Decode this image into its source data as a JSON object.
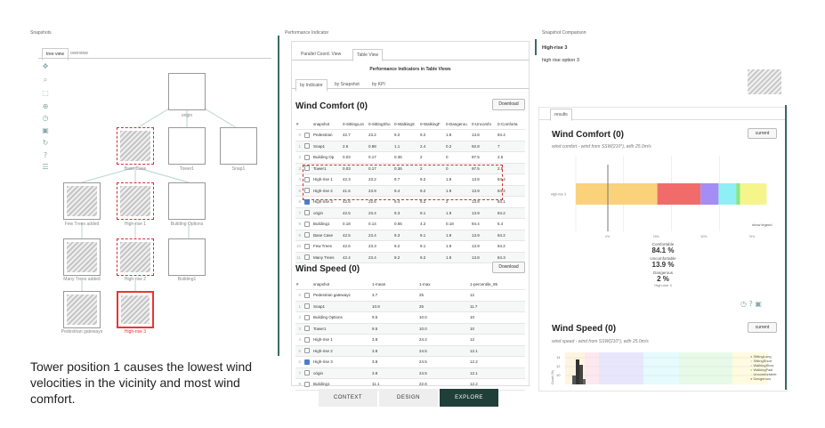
{
  "left": {
    "title": "Snapshots",
    "tabs": [
      {
        "label": "tree view",
        "active": true
      },
      {
        "label": "overview",
        "active": false
      }
    ],
    "tools": [
      "move-icon",
      "zoom-icon",
      "select-icon",
      "node-icon",
      "refresh-icon",
      "save-icon",
      "reset-icon",
      "help-icon",
      "filter-icon"
    ],
    "nodes": [
      {
        "label": "origin"
      },
      {
        "label": "Base Case"
      },
      {
        "label": "Tower1"
      },
      {
        "label": "Snap1"
      },
      {
        "label": "Few Trees added"
      },
      {
        "label": "High-rise 1"
      },
      {
        "label": "Building Options"
      },
      {
        "label": "Many Trees added"
      },
      {
        "label": "High-rise 2"
      },
      {
        "label": "Building1"
      },
      {
        "label": "Pedestrian gateways"
      },
      {
        "label": "High-rise 3"
      }
    ],
    "caption": "Tower position 1 causes the lowest wind velocities in the vicinity and most wind comfort."
  },
  "middle": {
    "title": "Performance Indicator",
    "view_tabs": [
      {
        "label": "Parallel Coord. View"
      },
      {
        "label": "Table View"
      }
    ],
    "table_title": "Performance Indicators in Table Views",
    "group_tabs": [
      {
        "label": "by Indicator"
      },
      {
        "label": "by Snapshot"
      },
      {
        "label": "by KPI"
      }
    ],
    "download": "Download",
    "wind_comfort": {
      "heading": "Wind Comfort (0)",
      "columns": [
        "#",
        "",
        "snapshot",
        "0-SittingLon",
        "0-SittingSho",
        "0-WalkingS",
        "0-WalkingF",
        "0-Dangerou",
        "0-Uncomfo",
        "0-Comforta"
      ],
      "rows": [
        [
          "0",
          false,
          "Pedestrian",
          "42.7",
          "23.2",
          "9.2",
          "9.2",
          "1.8",
          "13.8",
          "84.4"
        ],
        [
          "1",
          false,
          "Snap1",
          "2.6",
          "0.98",
          "1.1",
          "2.4",
          "0.2",
          "92.8",
          "7"
        ],
        [
          "2",
          false,
          "Building Op",
          "0.03",
          "0.17",
          "0.36",
          "2",
          "0",
          "97.5",
          "2.5"
        ],
        [
          "3",
          false,
          "Tower1",
          "0.03",
          "0.17",
          "0.36",
          "2",
          "0",
          "97.5",
          "2.5"
        ],
        [
          "4",
          false,
          "High-rise 1",
          "42.3",
          "23.2",
          "9.7",
          "9.2",
          "1.9",
          "13.8",
          "84.4"
        ],
        [
          "5",
          false,
          "High-rise 2",
          "41.6",
          "23.9",
          "9.4",
          "9.2",
          "1.9",
          "13.9",
          "84.2"
        ],
        [
          "6",
          true,
          "High-rise 3",
          "42.6",
          "22.6",
          "9.4",
          "9.2",
          "2",
          "13.9",
          "84.1"
        ],
        [
          "7",
          false,
          "origin",
          "42.5",
          "23.4",
          "9.3",
          "9.1",
          "1.9",
          "13.9",
          "84.2"
        ],
        [
          "8",
          false,
          "Building1",
          "0.18",
          "0.14",
          "0.65",
          "4.2",
          "0.18",
          "94.4",
          "5.4"
        ],
        [
          "9",
          false,
          "Base Case",
          "42.5",
          "23.4",
          "9.3",
          "9.1",
          "1.9",
          "13.9",
          "84.2"
        ],
        [
          "10",
          false,
          "Few Trees",
          "42.6",
          "23.3",
          "9.2",
          "9.1",
          "1.9",
          "13.9",
          "84.2"
        ],
        [
          "11",
          false,
          "Many Trees",
          "42.4",
          "23.4",
          "9.2",
          "9.2",
          "1.9",
          "13.8",
          "84.3"
        ]
      ]
    },
    "wind_speed": {
      "heading": "Wind Speed (0)",
      "columns": [
        "#",
        "",
        "snapshot",
        "1-mean",
        "1-max",
        "1-percentile_95"
      ],
      "rows": [
        [
          "0",
          false,
          "Pedestrian gateways",
          "3.7",
          "25",
          "12"
        ],
        [
          "1",
          false,
          "Snap1",
          "10.8",
          "25",
          "11.7"
        ],
        [
          "2",
          false,
          "Building Options",
          "9.5",
          "10.0",
          "10"
        ],
        [
          "3",
          false,
          "Tower1",
          "9.5",
          "10.0",
          "10"
        ],
        [
          "4",
          false,
          "High-rise 1",
          "3.8",
          "24.4",
          "12"
        ],
        [
          "5",
          false,
          "High-rise 2",
          "3.8",
          "24.5",
          "12.1"
        ],
        [
          "6",
          true,
          "High-rise 3",
          "3.8",
          "24.5",
          "12.2"
        ],
        [
          "7",
          false,
          "origin",
          "3.8",
          "24.5",
          "12.1"
        ],
        [
          "8",
          false,
          "Building1",
          "11.1",
          "22.8",
          "12.2"
        ]
      ]
    }
  },
  "nav": [
    {
      "label": "CONTEXT"
    },
    {
      "label": "DESIGN"
    },
    {
      "label": "EXPLORE"
    }
  ],
  "right": {
    "title": "Snapshot Comparison",
    "snap_name": "High-rise 3",
    "snap_desc": "high rise option 3",
    "results_tab": "results",
    "wind_comfort": {
      "heading": "Wind Comfort (0)",
      "button": "current",
      "subtitle": "wind comfort - wind from SSW(210°), with 25.0m/s",
      "row_label": "High-rise 3",
      "show_legend": "show legend",
      "ticks": [
        "0%",
        "25%",
        "50%",
        "75%"
      ],
      "stats": [
        {
          "label": "Comfortable",
          "value": "84.1 %"
        },
        {
          "label": "Uncomfortable",
          "value": "13.9 %"
        },
        {
          "label": "Dangerous",
          "value": "2 %"
        }
      ],
      "stat_sub": "High-rise 3"
    },
    "wind_speed": {
      "heading": "Wind Speed (0)",
      "button": "current",
      "subtitle": "wind speed - wind from SSW(210°), with 25.0m/s",
      "yticks": [
        "14",
        "12",
        "10"
      ],
      "ylabel": "Count (%)",
      "legend": [
        "SittingLong",
        "SittingShort",
        "WalkingSlow",
        "WalkingFast",
        "Uncomfortable",
        "Dangerous"
      ]
    }
  },
  "chart_data": [
    {
      "type": "bar",
      "title": "Wind Comfort (0)",
      "categories": [
        "High-rise 3"
      ],
      "series": [
        {
          "name": "0-SittingLon",
          "values": [
            42.6
          ]
        },
        {
          "name": "0-SittingSho",
          "values": [
            22.6
          ]
        },
        {
          "name": "0-WalkingS",
          "values": [
            9.4
          ]
        },
        {
          "name": "0-WalkingF",
          "values": [
            9.2
          ]
        },
        {
          "name": "0-Dangerou",
          "values": [
            2
          ]
        },
        {
          "name": "0-Uncomfo",
          "values": [
            13.9
          ]
        }
      ],
      "stacked": true,
      "orientation": "horizontal",
      "xlim": [
        0,
        100
      ],
      "colors": [
        "#f9d27a",
        "#f26b6b",
        "#a68cf5",
        "#8ef0f5",
        "#86e68a",
        "#f5f58a"
      ]
    }
  ]
}
